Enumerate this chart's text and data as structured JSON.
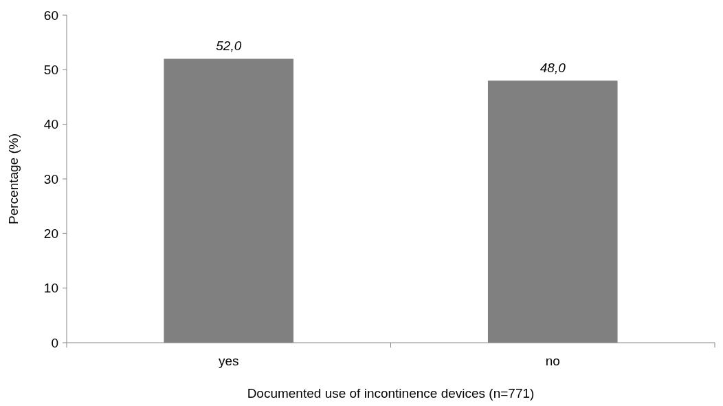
{
  "chart_data": {
    "type": "bar",
    "xlabel": "Documented use of incontinence devices (n=771)",
    "ylabel": "Percentage (%)",
    "categories": [
      "yes",
      "no"
    ],
    "values": [
      52.0,
      48.0
    ],
    "value_labels": [
      "52,0",
      "48,0"
    ],
    "color": "#808080",
    "ylim": [
      0,
      60
    ],
    "yticks": [
      0,
      10,
      20,
      30,
      40,
      50,
      60
    ],
    "grid": false
  }
}
